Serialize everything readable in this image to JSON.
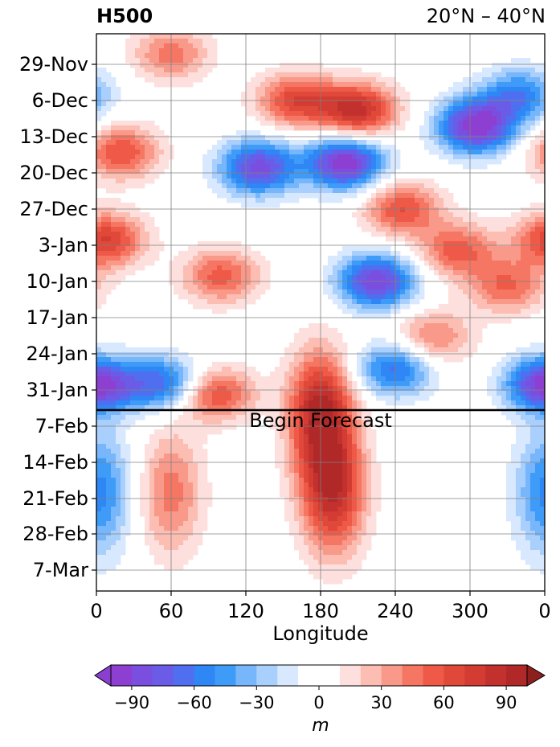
{
  "chart_data": {
    "type": "heatmap",
    "title_left": "H500",
    "title_right": "20°N – 40°N",
    "xlabel": "Longitude",
    "ylabel": "",
    "x_ticks": [
      "0",
      "60",
      "120",
      "180",
      "240",
      "300",
      "0"
    ],
    "x_tick_values": [
      0,
      60,
      120,
      180,
      240,
      300,
      360
    ],
    "y_ticks": [
      "29-Nov",
      "6-Dec",
      "13-Dec",
      "20-Dec",
      "27-Dec",
      "3-Jan",
      "10-Jan",
      "17-Jan",
      "24-Jan",
      "31-Jan",
      "7-Feb",
      "14-Feb",
      "21-Feb",
      "28-Feb",
      "7-Mar"
    ],
    "forecast_annotation": "Begin Forecast",
    "forecast_start": "4-Feb",
    "colorbar": {
      "label": "m",
      "tick_labels": [
        "−90",
        "−60",
        "−30",
        "0",
        "30",
        "60",
        "90"
      ],
      "tick_values": [
        -90,
        -60,
        -30,
        0,
        30,
        60,
        90
      ],
      "levels": [
        -100,
        -90,
        -80,
        -70,
        -60,
        -50,
        -40,
        -30,
        -20,
        -10,
        0,
        10,
        20,
        30,
        40,
        50,
        60,
        70,
        80,
        90,
        100
      ],
      "colors": [
        "#8c3fd0",
        "#7a4fe0",
        "#6a5ce6",
        "#4f6ff0",
        "#2f86f5",
        "#3f9bf8",
        "#77b6fb",
        "#a9cffd",
        "#d8e8fe",
        "#ffffff",
        "#ffffff",
        "#fde0dd",
        "#fcbdb3",
        "#f9998a",
        "#f57662",
        "#ee5a47",
        "#e0483a",
        "#d23c33",
        "#c2312d",
        "#b02828"
      ],
      "extend": "both"
    },
    "anomaly_centers": [
      {
        "lon": 210,
        "date": "8-Dec",
        "value": 85
      },
      {
        "lon": 200,
        "date": "18-Dec",
        "value": -100
      },
      {
        "lon": 305,
        "date": "11-Dec",
        "value": -100
      },
      {
        "lon": 340,
        "date": "5-Dec",
        "value": -55
      },
      {
        "lon": 20,
        "date": "16-Dec",
        "value": 60
      },
      {
        "lon": 130,
        "date": "19-Dec",
        "value": -85
      },
      {
        "lon": 160,
        "date": "6-Dec",
        "value": 65
      },
      {
        "lon": 60,
        "date": "27-Nov",
        "value": 45
      },
      {
        "lon": 8,
        "date": "2-Jan",
        "value": 70
      },
      {
        "lon": 245,
        "date": "27-Dec",
        "value": 60
      },
      {
        "lon": 290,
        "date": "4-Jan",
        "value": 55
      },
      {
        "lon": 225,
        "date": "10-Jan",
        "value": -90
      },
      {
        "lon": 100,
        "date": "9-Jan",
        "value": 55
      },
      {
        "lon": 330,
        "date": "11-Jan",
        "value": 50
      },
      {
        "lon": 0,
        "date": "30-Jan",
        "value": -95
      },
      {
        "lon": 55,
        "date": "30-Jan",
        "value": -70
      },
      {
        "lon": 240,
        "date": "27-Jan",
        "value": -65
      },
      {
        "lon": 180,
        "date": "5-Feb",
        "value": 95
      },
      {
        "lon": 95,
        "date": "1-Feb",
        "value": 65
      },
      {
        "lon": 270,
        "date": "21-Jan",
        "value": 45
      },
      {
        "lon": 190,
        "date": "20-Feb",
        "value": 90
      },
      {
        "lon": 60,
        "date": "20-Feb",
        "value": 50
      },
      {
        "lon": 2,
        "date": "20-Feb",
        "value": -60
      }
    ]
  }
}
